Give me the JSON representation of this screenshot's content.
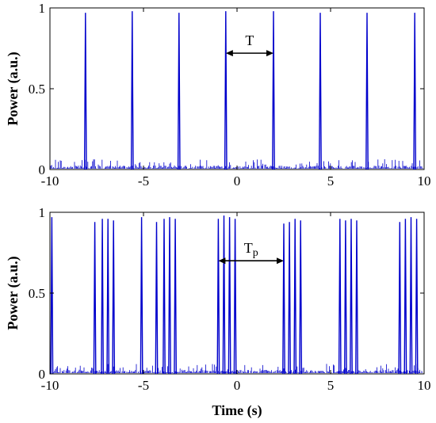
{
  "colors": {
    "signal": "#0000cc",
    "axis": "#000000",
    "annotation": "#000000"
  },
  "chart_data": [
    {
      "type": "line",
      "xlabel": "",
      "ylabel": "Power (a.u.)",
      "xlim": [
        -10,
        10
      ],
      "ylim": [
        0,
        1
      ],
      "xticks": [
        "-10",
        "-5",
        "0",
        "5",
        "10"
      ],
      "yticks": [
        "0",
        "0.5",
        "1"
      ],
      "peaks_x": [
        -8.1,
        -5.6,
        -3.1,
        -0.6,
        1.95,
        4.45,
        6.95,
        9.5
      ],
      "peaks_y": [
        0.97,
        0.98,
        0.97,
        0.98,
        0.98,
        0.97,
        0.97,
        0.97
      ],
      "noise_level": 0.04,
      "annotation": {
        "label": "T",
        "from": -0.6,
        "to": 1.95,
        "y": 0.72
      }
    },
    {
      "type": "line",
      "xlabel": "Time (s)",
      "ylabel": "Power (a.u.)",
      "xlim": [
        -10,
        10
      ],
      "ylim": [
        0,
        1
      ],
      "xticks": [
        "-10",
        "-5",
        "0",
        "5",
        "10"
      ],
      "yticks": [
        "0",
        "0.5",
        "1"
      ],
      "peaks_x": [
        -9.9,
        -7.6,
        -7.2,
        -6.9,
        -6.6,
        -5.1,
        -4.3,
        -3.9,
        -3.6,
        -3.3,
        -1.0,
        -0.7,
        -0.4,
        -0.1,
        2.5,
        2.8,
        3.1,
        3.4,
        5.5,
        5.8,
        6.1,
        6.4,
        8.7,
        9.0,
        9.3,
        9.6
      ],
      "peaks_y": [
        0.97,
        0.94,
        0.96,
        0.96,
        0.95,
        0.97,
        0.94,
        0.96,
        0.97,
        0.96,
        0.96,
        0.98,
        0.97,
        0.96,
        0.93,
        0.94,
        0.96,
        0.95,
        0.96,
        0.95,
        0.96,
        0.95,
        0.94,
        0.96,
        0.97,
        0.96
      ],
      "noise_level": 0.04,
      "annotation": {
        "label": "T",
        "subscript": "p",
        "from": -1.0,
        "to": 2.5,
        "y": 0.7
      }
    }
  ]
}
